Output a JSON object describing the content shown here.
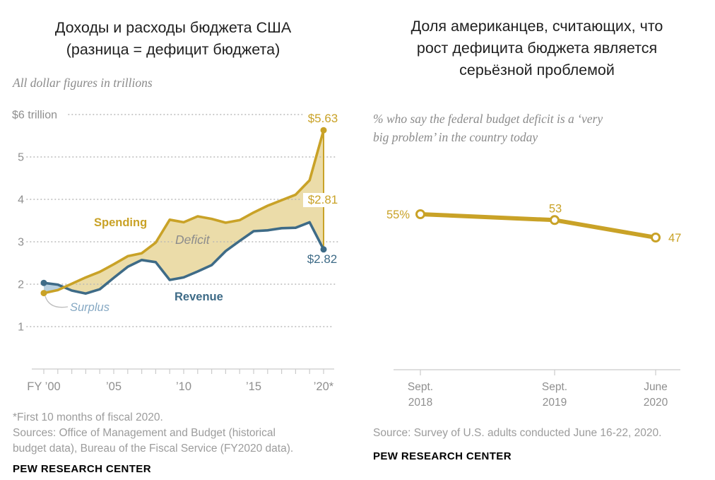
{
  "left_panel": {
    "title_lines": [
      "Доходы и расходы бюджета США",
      "(разница = дефицит бюджета)"
    ],
    "subtitle": "All dollar figures in trillions",
    "footnote_line": "*First 10 months of fiscal 2020.",
    "sources_line": "Sources: Office of Management and Budget (historical budget data), Bureau of the Fiscal Service (FY2020 data).",
    "brand": "PEW RESEARCH CENTER"
  },
  "right_panel": {
    "title_lines": [
      "Доля американцев, считающих, что",
      "рост дефицита бюджета является",
      "серьёзной проблемой"
    ],
    "subtitle_lines": [
      "% who say the federal budget deficit is a ‘very",
      "big problem’ in the country today"
    ],
    "source_line": "Source: Survey of U.S. adults conducted June 16-22, 2020.",
    "brand": "PEW RESEARCH CENTER"
  },
  "colors": {
    "gold": "#C9A227",
    "gold_fill": "#EBDCA9",
    "blue": "#3E6B87",
    "blue_fill": "#B7CFDF",
    "surplus_text": "#85A8C3",
    "deficit_text": "#8C8C8C",
    "grid": "#B5B5B5",
    "axis": "#CBCBCB",
    "axis_text": "#8F8F8F",
    "white": "#FFFFFF"
  },
  "chart_data": [
    {
      "type": "area",
      "title": "Доходы и расходы бюджета США (разница = дефицит бюджета)",
      "subtitle": "All dollar figures in trillions",
      "x": [
        2000,
        2001,
        2002,
        2003,
        2004,
        2005,
        2006,
        2007,
        2008,
        2009,
        2010,
        2011,
        2012,
        2013,
        2014,
        2015,
        2016,
        2017,
        2018,
        2019,
        2020
      ],
      "x_tick_indices": [
        0,
        5,
        10,
        15,
        20
      ],
      "x_tick_labels": [
        "FY ’00",
        "’05",
        "’10",
        "’15",
        "’20*"
      ],
      "y_ticks": [
        6,
        5,
        4,
        3,
        2,
        1
      ],
      "y_tick_labels": [
        "$6 trillion",
        "5",
        "4",
        "3",
        "2",
        "1"
      ],
      "ylim": [
        1,
        6
      ],
      "grid": true,
      "series": [
        {
          "name": "Spending",
          "values": [
            1.79,
            1.86,
            2.01,
            2.16,
            2.29,
            2.47,
            2.66,
            2.73,
            2.98,
            3.52,
            3.46,
            3.6,
            3.54,
            3.45,
            3.51,
            3.69,
            3.85,
            3.98,
            4.11,
            4.45,
            5.63
          ]
        },
        {
          "name": "Revenue",
          "values": [
            2.03,
            1.99,
            1.85,
            1.78,
            1.88,
            2.15,
            2.41,
            2.57,
            2.52,
            2.1,
            2.16,
            2.3,
            2.45,
            2.78,
            3.02,
            3.25,
            3.27,
            3.32,
            3.33,
            3.46,
            2.82
          ]
        }
      ],
      "area_labels": {
        "deficit": "Deficit",
        "surplus": "Surplus"
      },
      "end_labels": {
        "spending": "$5.63",
        "deficit": "$2.81",
        "revenue": "$2.82"
      }
    },
    {
      "type": "line",
      "categories": [
        "Sept. 2018",
        "Sept. 2019",
        "June 2020"
      ],
      "x_tick_lines": [
        [
          "Sept.",
          "2018"
        ],
        [
          "Sept.",
          "2019"
        ],
        [
          "June",
          "2020"
        ]
      ],
      "values": [
        55,
        53,
        47
      ],
      "point_labels": [
        "55%",
        "53",
        "47"
      ],
      "ylim": [
        40,
        60
      ],
      "legend": "none",
      "grid": false
    }
  ]
}
